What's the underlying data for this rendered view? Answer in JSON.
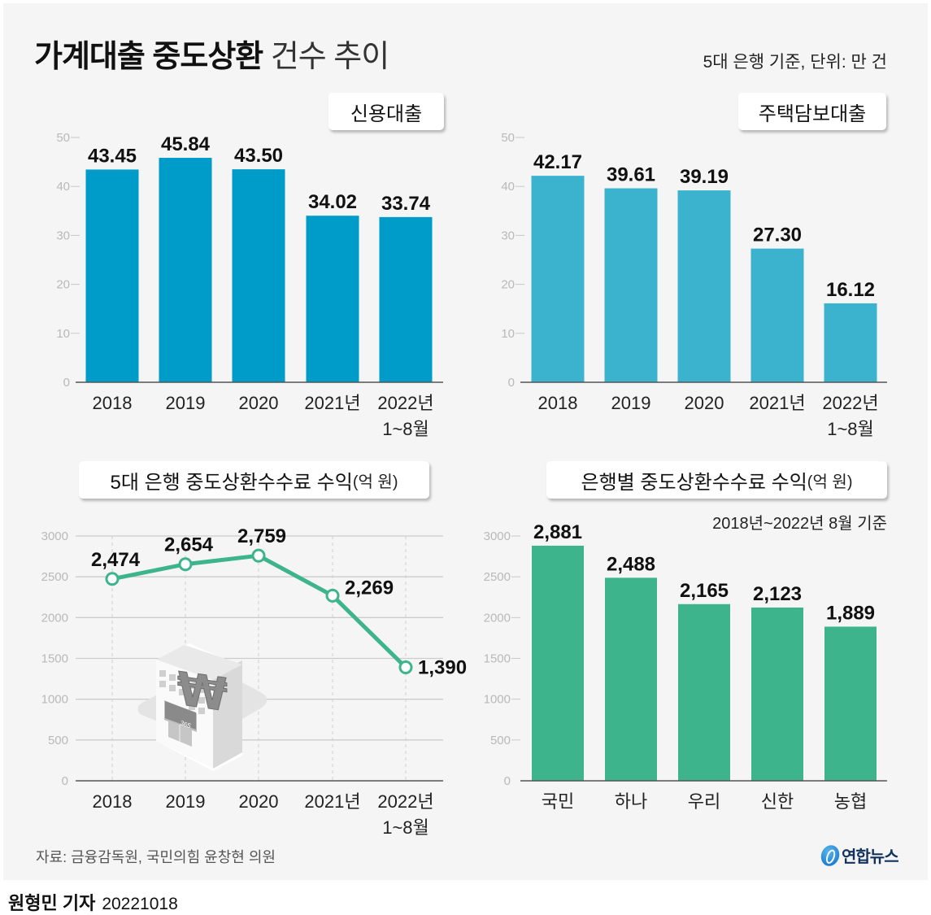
{
  "header": {
    "title_bold": "가계대출 중도상환",
    "title_light": "건수 추이",
    "unit_note": "5대 은행 기준, 단위: 만 건"
  },
  "colors": {
    "credit_loan": "#009cc9",
    "mortgage_loan": "#3bb2ce",
    "fee_line": "#3db48c",
    "bank_bars": "#3db48c",
    "background": "#f5f5f5"
  },
  "chart_data": [
    {
      "type": "bar",
      "title": "신용대출",
      "categories": [
        "2018",
        "2019",
        "2020",
        "2021년",
        "2022년\n1~8월"
      ],
      "category_lines": [
        [
          "2018"
        ],
        [
          "2019"
        ],
        [
          "2020"
        ],
        [
          "2021년"
        ],
        [
          "2022년",
          "1~8월"
        ]
      ],
      "values": [
        43.45,
        45.84,
        43.5,
        34.02,
        33.74
      ],
      "value_labels": [
        "43.45",
        "45.84",
        "43.50",
        "34.02",
        "33.74"
      ],
      "yticks": [
        "0",
        "10",
        "20",
        "30",
        "40",
        "50"
      ],
      "ylim": [
        0,
        50
      ],
      "ylabel": "만 건",
      "xlabel": ""
    },
    {
      "type": "bar",
      "title": "주택담보대출",
      "categories": [
        "2018",
        "2019",
        "2020",
        "2021년",
        "2022년\n1~8월"
      ],
      "category_lines": [
        [
          "2018"
        ],
        [
          "2019"
        ],
        [
          "2020"
        ],
        [
          "2021년"
        ],
        [
          "2022년",
          "1~8월"
        ]
      ],
      "values": [
        42.17,
        39.61,
        39.19,
        27.3,
        16.12
      ],
      "value_labels": [
        "42.17",
        "39.61",
        "39.19",
        "27.30",
        "16.12"
      ],
      "yticks": [
        "0",
        "10",
        "20",
        "30",
        "40",
        "50"
      ],
      "ylim": [
        0,
        50
      ],
      "ylabel": "만 건",
      "xlabel": ""
    },
    {
      "type": "line",
      "title": "5대 은행 중도상환수수료 수익",
      "title_unit": "(억 원)",
      "categories": [
        "2018",
        "2019",
        "2020",
        "2021년",
        "2022년\n1~8월"
      ],
      "category_lines": [
        [
          "2018"
        ],
        [
          "2019"
        ],
        [
          "2020"
        ],
        [
          "2021년"
        ],
        [
          "2022년",
          "1~8월"
        ]
      ],
      "values": [
        2474,
        2654,
        2759,
        2269,
        1390
      ],
      "value_labels": [
        "2,474",
        "2,654",
        "2,759",
        "2,269",
        "1,390"
      ],
      "yticks": [
        "0",
        "500",
        "1000",
        "1500",
        "2000",
        "2500",
        "3000"
      ],
      "ylim": [
        0,
        3000
      ],
      "grid": true,
      "xlabel": "",
      "ylabel": "억 원"
    },
    {
      "type": "bar",
      "title": "은행별 중도상환수수료 수익",
      "title_unit": "(억 원)",
      "subtitle": "2018년~2022년 8월 기준",
      "categories": [
        "국민",
        "하나",
        "우리",
        "신한",
        "농협"
      ],
      "category_lines": [
        [
          "국민"
        ],
        [
          "하나"
        ],
        [
          "우리"
        ],
        [
          "신한"
        ],
        [
          "농협"
        ]
      ],
      "values": [
        2881,
        2488,
        2165,
        2123,
        1889
      ],
      "value_labels": [
        "2,881",
        "2,488",
        "2,165",
        "2,123",
        "1,889"
      ],
      "yticks": [
        "0",
        "500",
        "1000",
        "1500",
        "2000",
        "2500",
        "3000"
      ],
      "ylim": [
        0,
        3000
      ],
      "xlabel": "",
      "ylabel": "억 원"
    }
  ],
  "illustration": {
    "icon": "bank-building-icon",
    "sign_text": "365",
    "symbol": "₩"
  },
  "footer": {
    "source": "자료: 금융감독원, 국민의힘 윤창현 의원",
    "logo_text": "연합뉴스",
    "reporter": "원형민 기자",
    "date": "20221018"
  }
}
